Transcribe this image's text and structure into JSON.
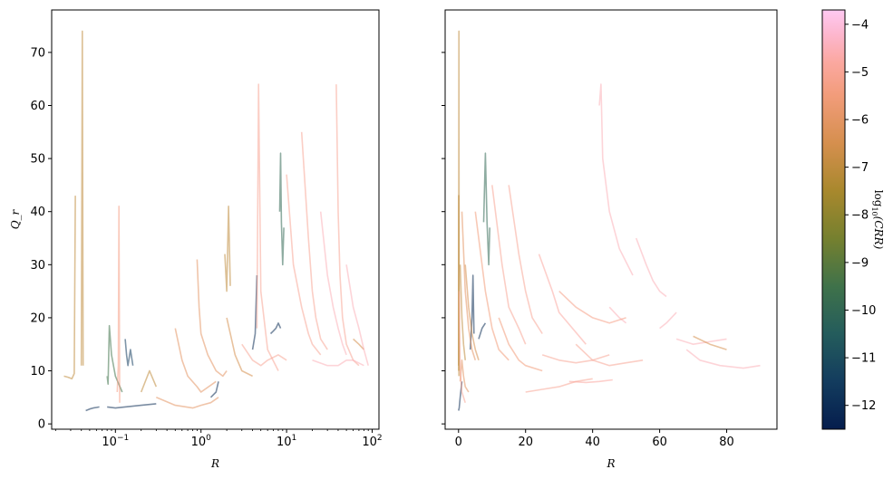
{
  "chart_data": [
    {
      "type": "line",
      "panel": "left",
      "xscale": "log",
      "xlim": [
        0.018,
        120
      ],
      "ylim": [
        -1,
        78
      ],
      "xlabel": "R",
      "ylabel": "Q_r",
      "xticks": [
        {
          "value": 0.1,
          "label": "10",
          "exp": "−1"
        },
        {
          "value": 1,
          "label": "10",
          "exp": "0"
        },
        {
          "value": 10,
          "label": "10",
          "exp": "1"
        },
        {
          "value": 100,
          "label": "10",
          "exp": "2"
        }
      ],
      "yticks": [
        0,
        10,
        20,
        30,
        40,
        50,
        60,
        70
      ],
      "series": [
        {
          "c": -7.0,
          "x": [
            0.025,
            0.028,
            0.031,
            0.033,
            0.034
          ],
          "y": [
            9,
            8.8,
            8.5,
            9.5,
            43
          ]
        },
        {
          "c": -7.0,
          "x": [
            0.04,
            0.041,
            0.042
          ],
          "y": [
            11,
            74,
            11
          ]
        },
        {
          "c": -12.0,
          "x": [
            0.045,
            0.05,
            0.055,
            0.06,
            0.065
          ],
          "y": [
            2.5,
            2.8,
            3.0,
            3.1,
            3.2
          ]
        },
        {
          "c": -9.5,
          "x": [
            0.08,
            0.082,
            0.085,
            0.09,
            0.1,
            0.12
          ],
          "y": [
            9,
            7.5,
            18.5,
            13,
            9,
            6
          ]
        },
        {
          "c": -5.3,
          "x": [
            0.105,
            0.108,
            0.11,
            0.112
          ],
          "y": [
            6,
            11,
            41,
            4
          ]
        },
        {
          "c": -12.0,
          "x": [
            0.08,
            0.1,
            0.15,
            0.2,
            0.3
          ],
          "y": [
            3.2,
            3.0,
            3.3,
            3.5,
            3.8
          ]
        },
        {
          "c": -11.5,
          "x": [
            0.13,
            0.135,
            0.14,
            0.15,
            0.16
          ],
          "y": [
            16,
            13,
            11,
            14,
            11
          ]
        },
        {
          "c": -7.0,
          "x": [
            0.2,
            0.25,
            0.3
          ],
          "y": [
            6,
            10,
            7
          ]
        },
        {
          "c": -6.0,
          "x": [
            0.3,
            0.5,
            0.8,
            1.0,
            1.3,
            1.6
          ],
          "y": [
            5,
            3.5,
            3,
            3.5,
            4,
            5
          ]
        },
        {
          "c": -12.0,
          "x": [
            1.3,
            1.5,
            1.6
          ],
          "y": [
            5,
            6,
            8
          ]
        },
        {
          "c": -6.0,
          "x": [
            0.5,
            0.6,
            0.7,
            0.9,
            1.0,
            1.5
          ],
          "y": [
            18,
            12,
            9,
            7,
            6,
            8
          ]
        },
        {
          "c": -6.0,
          "x": [
            0.9,
            0.95,
            1.0,
            1.2,
            1.5,
            1.8,
            2.0
          ],
          "y": [
            31,
            22,
            17,
            13,
            10,
            9,
            10
          ]
        },
        {
          "c": -7.0,
          "x": [
            1.9,
            2.0,
            2.1,
            2.2
          ],
          "y": [
            32,
            25,
            41,
            26
          ]
        },
        {
          "c": -6.5,
          "x": [
            2.0,
            2.5,
            3.0,
            4.0
          ],
          "y": [
            20,
            13,
            10,
            9
          ]
        },
        {
          "c": -12.0,
          "x": [
            4.0,
            4.3,
            4.5
          ],
          "y": [
            14,
            17,
            28
          ]
        },
        {
          "c": -5.0,
          "x": [
            4.5,
            4.7,
            5.0,
            6.0,
            8.0
          ],
          "y": [
            18,
            64,
            25,
            14,
            10
          ]
        },
        {
          "c": -10.0,
          "x": [
            8.3,
            8.5,
            8.7,
            9.0,
            9.3
          ],
          "y": [
            40,
            51,
            38,
            30,
            37
          ]
        },
        {
          "c": -12.0,
          "x": [
            6.5,
            7.0,
            7.5,
            8.0,
            8.5
          ],
          "y": [
            17,
            17.5,
            18,
            19,
            18
          ]
        },
        {
          "c": -5.0,
          "x": [
            10,
            12,
            15,
            18,
            20,
            25
          ],
          "y": [
            47,
            30,
            22,
            17,
            15,
            13
          ]
        },
        {
          "c": -5.0,
          "x": [
            15,
            18,
            20,
            22,
            25,
            30
          ],
          "y": [
            55,
            35,
            25,
            20,
            16,
            14
          ]
        },
        {
          "c": -4.5,
          "x": [
            25,
            30,
            35,
            40,
            45,
            50
          ],
          "y": [
            40,
            28,
            22,
            18,
            15,
            13
          ]
        },
        {
          "c": -5.0,
          "x": [
            38,
            40,
            42,
            45,
            50,
            60,
            70
          ],
          "y": [
            64,
            40,
            28,
            20,
            15,
            12,
            11
          ]
        },
        {
          "c": -6.5,
          "x": [
            60,
            70,
            80
          ],
          "y": [
            16,
            15,
            14
          ]
        },
        {
          "c": -4.5,
          "x": [
            20,
            30,
            40,
            50,
            60,
            80
          ],
          "y": [
            12,
            11,
            11,
            12,
            12,
            11
          ]
        },
        {
          "c": -5.0,
          "x": [
            3,
            4,
            5,
            6,
            8,
            10
          ],
          "y": [
            15,
            12,
            11,
            12,
            13,
            12
          ]
        },
        {
          "c": -4.5,
          "x": [
            50,
            60,
            70,
            80,
            90
          ],
          "y": [
            30,
            22,
            18,
            14,
            11
          ]
        }
      ]
    },
    {
      "type": "line",
      "panel": "right",
      "xscale": "linear",
      "xlim": [
        -4,
        95
      ],
      "ylim": [
        -1,
        78
      ],
      "xlabel": "R",
      "ylabel": "",
      "xticks": [
        {
          "value": 0,
          "label": "0"
        },
        {
          "value": 20,
          "label": "20"
        },
        {
          "value": 40,
          "label": "40"
        },
        {
          "value": 60,
          "label": "60"
        },
        {
          "value": 80,
          "label": "80"
        }
      ],
      "yticks": [
        0,
        10,
        20,
        30,
        40,
        50,
        60,
        70
      ],
      "series": [
        {
          "c": -7.0,
          "x": [
            0,
            0.1,
            0.2
          ],
          "y": [
            11,
            74,
            10
          ]
        },
        {
          "c": -7.0,
          "x": [
            0,
            0.05,
            0.1
          ],
          "y": [
            10,
            43,
            9
          ]
        },
        {
          "c": -12.0,
          "x": [
            0,
            0.2,
            0.5,
            1.0
          ],
          "y": [
            2.5,
            3,
            5,
            8
          ]
        },
        {
          "c": -10.0,
          "x": [
            7.5,
            8.0,
            8.5,
            9.0,
            9.3
          ],
          "y": [
            38,
            51,
            38,
            30,
            37
          ]
        },
        {
          "c": -12.0,
          "x": [
            3.5,
            4.0,
            4.3,
            4.6
          ],
          "y": [
            14,
            20,
            28,
            17
          ]
        },
        {
          "c": -12.0,
          "x": [
            6.0,
            7.0,
            8.0
          ],
          "y": [
            16,
            18,
            19
          ]
        },
        {
          "c": -6.0,
          "x": [
            1,
            2,
            3,
            4,
            5
          ],
          "y": [
            40,
            25,
            18,
            14,
            12
          ]
        },
        {
          "c": -6.5,
          "x": [
            2,
            3,
            4,
            5,
            6
          ],
          "y": [
            30,
            22,
            17,
            14,
            12
          ]
        },
        {
          "c": -5.5,
          "x": [
            5,
            8,
            10,
            12,
            15
          ],
          "y": [
            40,
            25,
            18,
            14,
            12
          ]
        },
        {
          "c": -5.0,
          "x": [
            10,
            13,
            15,
            18,
            20
          ],
          "y": [
            45,
            30,
            22,
            18,
            15
          ]
        },
        {
          "c": -5.0,
          "x": [
            15,
            18,
            20,
            22,
            25
          ],
          "y": [
            45,
            32,
            25,
            20,
            17
          ]
        },
        {
          "c": -4.8,
          "x": [
            24,
            28,
            30,
            34,
            38
          ],
          "y": [
            32,
            25,
            21,
            18,
            15
          ]
        },
        {
          "c": -4.5,
          "x": [
            42,
            42.5,
            43,
            45,
            48,
            52
          ],
          "y": [
            60,
            64,
            50,
            40,
            33,
            28
          ]
        },
        {
          "c": -4.5,
          "x": [
            53,
            56,
            58,
            60,
            62
          ],
          "y": [
            35,
            30,
            27,
            25,
            24
          ]
        },
        {
          "c": -4.5,
          "x": [
            45,
            48,
            50
          ],
          "y": [
            22,
            20,
            19
          ]
        },
        {
          "c": -4.5,
          "x": [
            60,
            62,
            65
          ],
          "y": [
            18,
            19,
            21
          ]
        },
        {
          "c": -4.5,
          "x": [
            68,
            72,
            78,
            85,
            90
          ],
          "y": [
            14,
            12,
            11,
            10.5,
            11
          ]
        },
        {
          "c": -4.5,
          "x": [
            65,
            70,
            75,
            80
          ],
          "y": [
            16,
            15,
            15.5,
            16
          ]
        },
        {
          "c": -6.5,
          "x": [
            70,
            75,
            80
          ],
          "y": [
            16.5,
            15,
            14
          ]
        },
        {
          "c": -5.0,
          "x": [
            35,
            40,
            45,
            50,
            55
          ],
          "y": [
            15,
            12,
            11,
            11.5,
            12
          ]
        },
        {
          "c": -4.8,
          "x": [
            33,
            38,
            42,
            46
          ],
          "y": [
            8,
            7.8,
            8,
            8.3
          ]
        },
        {
          "c": -5.0,
          "x": [
            20,
            25,
            30,
            35,
            40
          ],
          "y": [
            6,
            6.5,
            7,
            8,
            8.5
          ]
        },
        {
          "c": -5.0,
          "x": [
            25,
            30,
            35,
            40,
            45
          ],
          "y": [
            13,
            12,
            11.5,
            12,
            13
          ]
        },
        {
          "c": -5.5,
          "x": [
            12,
            15,
            18,
            20,
            25
          ],
          "y": [
            20,
            15,
            12,
            11,
            10
          ]
        },
        {
          "c": -6.0,
          "x": [
            0.5,
            1,
            1.5,
            2,
            3
          ],
          "y": [
            8,
            12,
            9,
            7,
            6
          ]
        },
        {
          "c": -5.0,
          "x": [
            0.2,
            0.3,
            0.5,
            1,
            2
          ],
          "y": [
            25,
            18,
            10,
            6,
            4
          ]
        },
        {
          "c": -7.0,
          "x": [
            0.5,
            1.0,
            1.5,
            2.0
          ],
          "y": [
            30,
            20,
            15,
            12
          ]
        },
        {
          "c": -5.3,
          "x": [
            30,
            35,
            40,
            45,
            50
          ],
          "y": [
            25,
            22,
            20,
            19,
            20
          ]
        }
      ]
    }
  ],
  "colorbar": {
    "label": "log₁₀(CRR)",
    "label_main": "log",
    "label_sub": "10",
    "label_paren": "(CRR)",
    "range": [
      -12.5,
      -3.7
    ],
    "ticks": [
      {
        "value": -4,
        "label": "−4"
      },
      {
        "value": -5,
        "label": "−5"
      },
      {
        "value": -6,
        "label": "−6"
      },
      {
        "value": -7,
        "label": "−7"
      },
      {
        "value": -8,
        "label": "−8"
      },
      {
        "value": -9,
        "label": "−9"
      },
      {
        "value": -10,
        "label": "−10"
      },
      {
        "value": -11,
        "label": "−11"
      },
      {
        "value": -12,
        "label": "−12"
      }
    ],
    "colormap": [
      {
        "v": -12.5,
        "color": "#051d4d"
      },
      {
        "v": -11.5,
        "color": "#133c5e"
      },
      {
        "v": -10.5,
        "color": "#245c5c"
      },
      {
        "v": -9.5,
        "color": "#3f724a"
      },
      {
        "v": -8.5,
        "color": "#75802f"
      },
      {
        "v": -7.5,
        "color": "#a8882d"
      },
      {
        "v": -6.5,
        "color": "#d58f4e"
      },
      {
        "v": -5.5,
        "color": "#f29c7a"
      },
      {
        "v": -4.8,
        "color": "#fba8a0"
      },
      {
        "v": -4.2,
        "color": "#fdb7cf"
      },
      {
        "v": -3.7,
        "color": "#fec9f2"
      }
    ]
  }
}
